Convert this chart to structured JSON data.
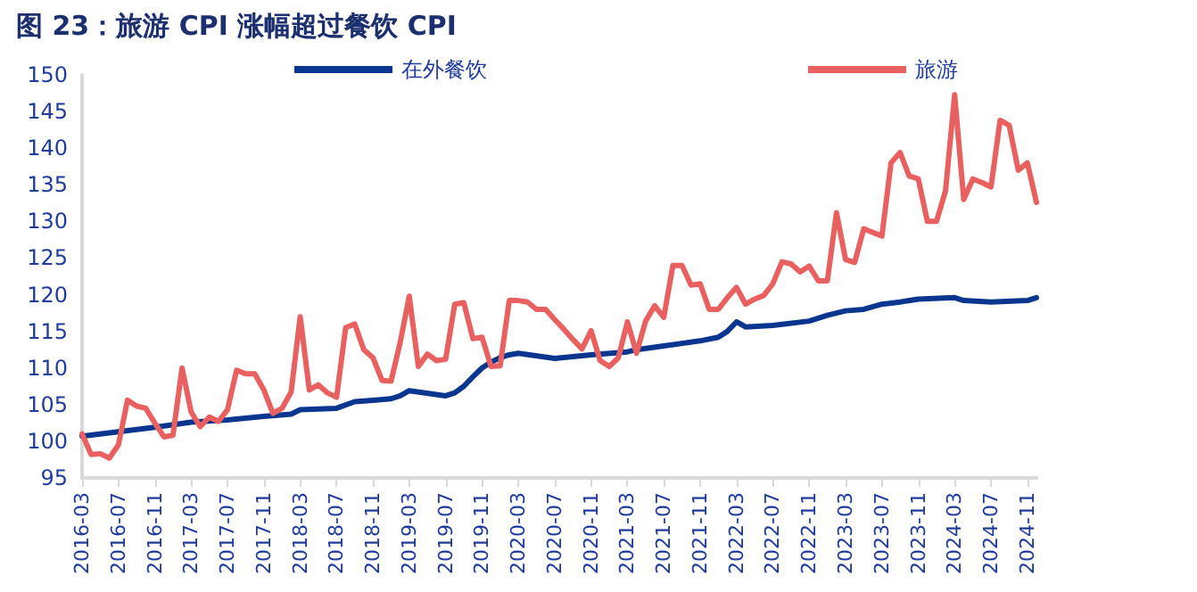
{
  "chart_data": {
    "type": "line",
    "title": "图 23：旅游 CPI 涨幅超过餐饮 CPI",
    "xlim": [
      "2016-03",
      "2024-12"
    ],
    "xticks": [
      "2016-03",
      "2016-07",
      "2016-11",
      "2017-03",
      "2017-07",
      "2017-11",
      "2018-03",
      "2018-07",
      "2018-11",
      "2019-03",
      "2019-07",
      "2019-11",
      "2020-03",
      "2020-07",
      "2020-11",
      "2021-03",
      "2021-07",
      "2021-11",
      "2022-03",
      "2022-07",
      "2022-11",
      "2023-03",
      "2023-07",
      "2023-11",
      "2024-03",
      "2024-07",
      "2024-11"
    ],
    "ylim": [
      95,
      150
    ],
    "yticks": [
      95,
      100,
      105,
      110,
      115,
      120,
      125,
      130,
      135,
      140,
      145,
      150
    ],
    "legend": "top",
    "grid": false,
    "series": [
      {
        "name": "在外餐饮",
        "color": "#0a3690",
        "x": [
          "2016-03",
          "2016-07",
          "2016-11",
          "2017-03",
          "2017-07",
          "2017-11",
          "2018-02",
          "2018-03",
          "2018-07",
          "2018-09",
          "2018-11",
          "2019-01",
          "2019-02",
          "2019-03",
          "2019-07",
          "2019-08",
          "2019-09",
          "2019-10",
          "2019-11",
          "2019-12",
          "2020-01",
          "2020-02",
          "2020-03",
          "2020-07",
          "2020-11",
          "2021-03",
          "2021-04",
          "2021-07",
          "2021-11",
          "2022-01",
          "2022-02",
          "2022-03",
          "2022-04",
          "2022-07",
          "2022-11",
          "2023-01",
          "2023-03",
          "2023-05",
          "2023-07",
          "2023-09",
          "2023-11",
          "2024-03",
          "2024-04",
          "2024-07",
          "2024-11",
          "2024-12"
        ],
        "values": [
          100.7,
          101.3,
          101.9,
          102.6,
          102.9,
          103.4,
          103.7,
          104.3,
          104.5,
          105.4,
          105.6,
          105.8,
          106.2,
          106.9,
          106.2,
          106.6,
          107.5,
          108.8,
          110,
          110.8,
          111.4,
          111.8,
          112,
          111.3,
          111.8,
          112.2,
          112.5,
          113,
          113.7,
          114.2,
          115,
          116.3,
          115.6,
          115.8,
          116.4,
          117.2,
          117.8,
          118,
          118.7,
          119,
          119.4,
          119.6,
          119.2,
          119,
          119.2,
          119.6
        ]
      },
      {
        "name": "旅游",
        "color": "#e8605f",
        "x": [
          "2016-03",
          "2016-04",
          "2016-05",
          "2016-06",
          "2016-07",
          "2016-08",
          "2016-09",
          "2016-10",
          "2016-11",
          "2016-12",
          "2017-01",
          "2017-02",
          "2017-03",
          "2017-04",
          "2017-05",
          "2017-06",
          "2017-07",
          "2017-08",
          "2017-09",
          "2017-10",
          "2017-11",
          "2017-12",
          "2018-01",
          "2018-02",
          "2018-03",
          "2018-04",
          "2018-05",
          "2018-06",
          "2018-07",
          "2018-08",
          "2018-09",
          "2018-10",
          "2018-11",
          "2018-12",
          "2019-01",
          "2019-02",
          "2019-03",
          "2019-04",
          "2019-05",
          "2019-06",
          "2019-07",
          "2019-08",
          "2019-09",
          "2019-10",
          "2019-11",
          "2019-12",
          "2020-01",
          "2020-02",
          "2020-03",
          "2020-04",
          "2020-05",
          "2020-06",
          "2020-07",
          "2020-08",
          "2020-09",
          "2020-10",
          "2020-11",
          "2020-12",
          "2021-01",
          "2021-02",
          "2021-03",
          "2021-04",
          "2021-05",
          "2021-06",
          "2021-07",
          "2021-08",
          "2021-09",
          "2021-10",
          "2021-11",
          "2021-12",
          "2022-01",
          "2022-02",
          "2022-03",
          "2022-04",
          "2022-05",
          "2022-06",
          "2022-07",
          "2022-08",
          "2022-09",
          "2022-10",
          "2022-11",
          "2022-12",
          "2023-01",
          "2023-02",
          "2023-03",
          "2023-04",
          "2023-05",
          "2023-06",
          "2023-07",
          "2023-08",
          "2023-09",
          "2023-10",
          "2023-11",
          "2023-12",
          "2024-01",
          "2024-02",
          "2024-03",
          "2024-04",
          "2024-05",
          "2024-06",
          "2024-07",
          "2024-08",
          "2024-09",
          "2024-10",
          "2024-11",
          "2024-12"
        ],
        "values": [
          101,
          98.2,
          98.3,
          97.7,
          99.5,
          105.6,
          104.8,
          104.5,
          102.5,
          100.6,
          100.8,
          110,
          104,
          102,
          103.3,
          102.7,
          104.3,
          109.7,
          109.2,
          109.2,
          107,
          103.8,
          104.5,
          106.7,
          117,
          107,
          107.7,
          106.6,
          106,
          115.5,
          116,
          112.5,
          111.4,
          108.3,
          108.2,
          113.5,
          119.8,
          110.2,
          111.9,
          111,
          111.2,
          118.7,
          118.9,
          114,
          114.2,
          110.2,
          110.3,
          119.2,
          119.2,
          119,
          118,
          118,
          116.6,
          115.3,
          113.9,
          112.6,
          115.1,
          111,
          110.2,
          111.4,
          116.3,
          112,
          116.4,
          118.5,
          116.9,
          124,
          124,
          121.3,
          121.5,
          118,
          118,
          119.6,
          121,
          118.7,
          119.4,
          119.9,
          121.5,
          124.5,
          124.2,
          123.1,
          123.9,
          121.9,
          121.9,
          131.2,
          124.8,
          124.4,
          129,
          128.5,
          128,
          138,
          139.4,
          136.2,
          135.8,
          130,
          130,
          134.2,
          147.3,
          133,
          135.8,
          135.3,
          134.7,
          143.8,
          143.1,
          137,
          138,
          132.6
        ]
      }
    ]
  }
}
